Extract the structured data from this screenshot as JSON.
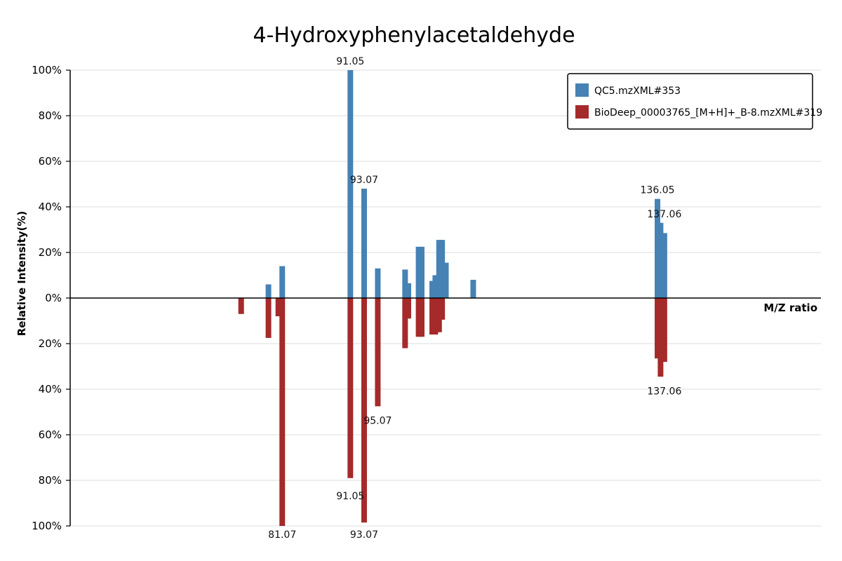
{
  "chart_data": {
    "type": "bar",
    "title": "4-Hydroxyphenylacetaldehyde",
    "xlabel": "M/Z ratio",
    "ylabel": "Relative Intensity(%)",
    "y_ticks_top": [
      "100%",
      "80%",
      "60%",
      "40%",
      "20%",
      "0%"
    ],
    "y_ticks_bottom": [
      "20%",
      "40%",
      "60%",
      "80%",
      "100%"
    ],
    "ylim": [
      -100,
      100
    ],
    "x_range": [
      50,
      160
    ],
    "grid": true,
    "legend_position": "top-right",
    "series": [
      {
        "name": "QC5.mzXML#353",
        "color": "#4682b4",
        "direction": "up",
        "x": [
          91.05,
          93.07,
          95.07,
          79.05,
          81.07,
          99.07,
          99.55,
          101.05,
          101.5,
          103.05,
          103.5,
          104.05,
          104.5,
          105.05,
          109.05,
          136.05,
          136.5,
          137.06
        ],
        "y": [
          100,
          48,
          13,
          6,
          14,
          12.5,
          6.5,
          22.5,
          22.5,
          7.5,
          10,
          25.5,
          25.5,
          15.5,
          8,
          43.5,
          33,
          28.5
        ],
        "labels": [
          {
            "text": "91.05",
            "x": 91.05,
            "y": 100
          },
          {
            "text": "93.07",
            "x": 93.07,
            "y": 48
          },
          {
            "text": "136.05",
            "x": 136.05,
            "y": 43.5
          },
          {
            "text": "137.06",
            "x": 137.06,
            "y": 33
          }
        ]
      },
      {
        "name": "BioDeep_00003765_[M+H]+_B-8.mzXML#319",
        "color": "#a52a2a",
        "direction": "down",
        "x": [
          75.05,
          79.05,
          80.5,
          81.07,
          91.05,
          93.07,
          95.07,
          99.07,
          99.55,
          101.05,
          101.5,
          103.05,
          103.5,
          104.05,
          104.5,
          136.05,
          136.5,
          137.06
        ],
        "y": [
          7,
          17.5,
          8,
          100,
          79,
          98.5,
          47.5,
          22,
          9,
          17,
          17,
          16,
          16,
          15,
          9.5,
          26.5,
          34.5,
          28
        ],
        "labels": [
          {
            "text": "95.07",
            "x": 95.07,
            "y": 50
          },
          {
            "text": "91.05",
            "x": 91.05,
            "y": 83
          },
          {
            "text": "81.07",
            "x": 81.07,
            "y": 100
          },
          {
            "text": "93.07",
            "x": 93.07,
            "y": 100
          },
          {
            "text": "137.06",
            "x": 137.06,
            "y": 37
          }
        ]
      }
    ]
  }
}
